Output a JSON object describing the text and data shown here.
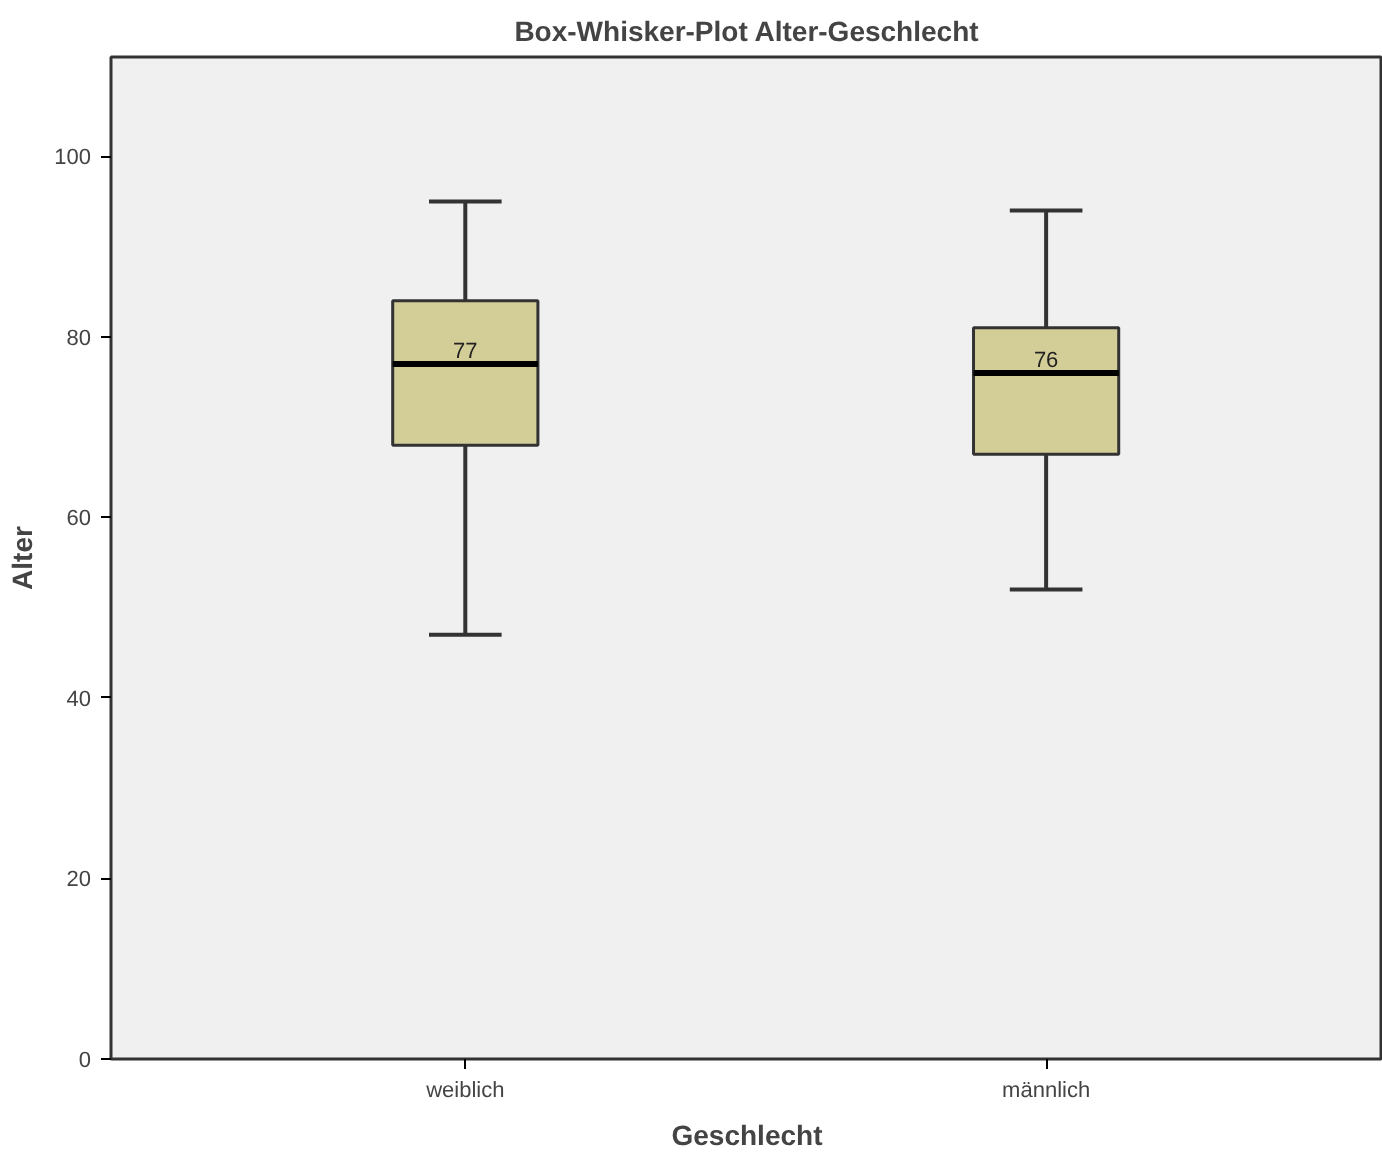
{
  "chart_data": {
    "type": "box",
    "title": "Box-Whisker-Plot Alter-Geschlecht",
    "xlabel": "Geschlecht",
    "ylabel": "Alter",
    "categories": [
      "weiblich",
      "männlich"
    ],
    "boxes": [
      {
        "low": 47,
        "q1": 68,
        "median": 77,
        "q3": 84,
        "high": 95
      },
      {
        "low": 52,
        "q1": 67,
        "median": 76,
        "q3": 81,
        "high": 94
      }
    ],
    "value_labels": [
      "77",
      "76"
    ],
    "color": "#d3cd98",
    "ylim": [
      0,
      111
    ],
    "yticks": [
      0,
      20,
      40,
      60,
      80,
      100
    ],
    "grid": false
  }
}
